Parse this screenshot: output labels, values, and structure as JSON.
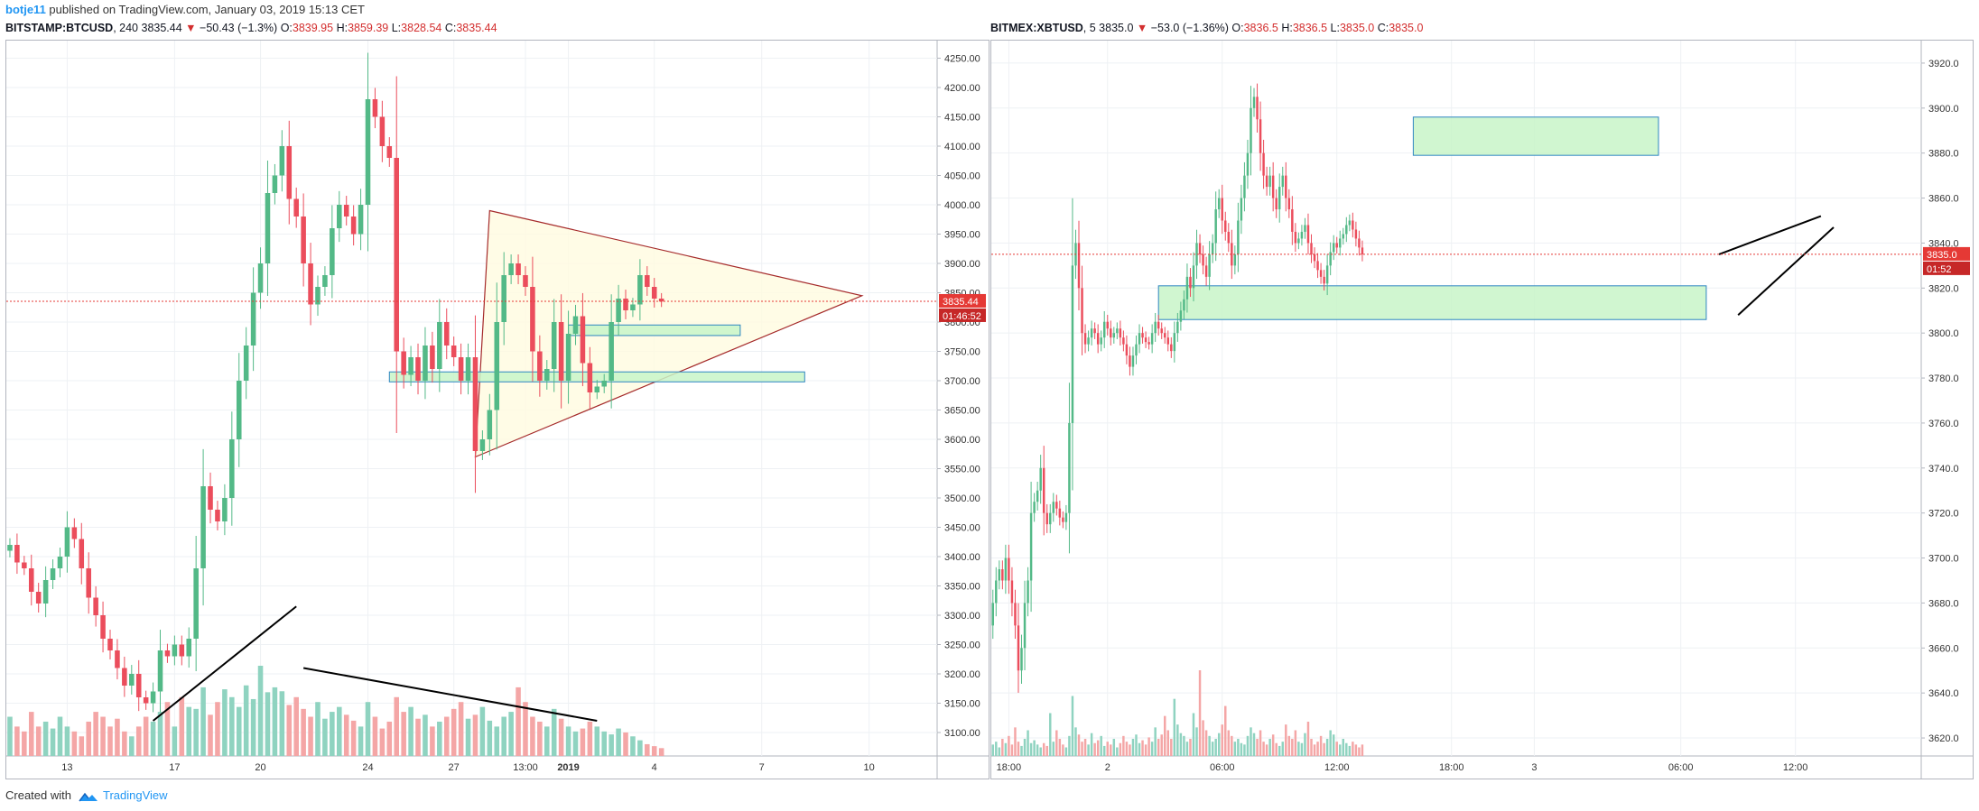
{
  "header": {
    "author": "botje11",
    "published_text": "published on TradingView.com, January 03, 2019 15:13 CET"
  },
  "footer": {
    "created_with": "Created with",
    "brand": "TradingView"
  },
  "colors": {
    "up": "#53b987",
    "down": "#eb4d5c",
    "vol_up": "#8fd3c0",
    "vol_down": "#f4a6a6",
    "grid": "#eef1f4",
    "zone_fill": "#c8f5c8",
    "zone_stroke": "#2e86c1",
    "triangle_stroke": "#a52a2a",
    "triangle_fill": "#fffbe0",
    "price_line": "#e53935"
  },
  "chart_data": [
    {
      "type": "candlestick",
      "symbol": "BITSTAMP:BTCUSD",
      "interval": "240",
      "last": "3835.44",
      "change": "−50.43 (−1.3%)",
      "ohlc": {
        "O": "3839.95",
        "H": "3859.39",
        "L": "3828.54",
        "C": "3835.44"
      },
      "price_label": "3835.44",
      "countdown": "01:46:52",
      "ylim": [
        3060,
        4280
      ],
      "y_ticks": [
        "4250.00",
        "4200.00",
        "4150.00",
        "4100.00",
        "4050.00",
        "4000.00",
        "3950.00",
        "3900.00",
        "3850.00",
        "3800.00",
        "3750.00",
        "3700.00",
        "3650.00",
        "3600.00",
        "3550.00",
        "3500.00",
        "3450.00",
        "3400.00",
        "3350.00",
        "3300.00",
        "3250.00",
        "3200.00",
        "3150.00",
        "3100.00"
      ],
      "y_tick_values": [
        4250,
        4200,
        4150,
        4100,
        4050,
        4000,
        3950,
        3900,
        3850,
        3800,
        3750,
        3700,
        3650,
        3600,
        3550,
        3500,
        3450,
        3400,
        3350,
        3300,
        3250,
        3200,
        3150,
        3100
      ],
      "x_ticks": [
        "13",
        "17",
        "20",
        "24",
        "27",
        "13:00",
        "2019",
        "4",
        "7",
        "10"
      ],
      "x_tick_bars": [
        8,
        23,
        35,
        50,
        62,
        72,
        78,
        90,
        105,
        120
      ],
      "n_bars_span": 130,
      "closes": [
        3420,
        3390,
        3380,
        3340,
        3320,
        3360,
        3380,
        3400,
        3450,
        3430,
        3380,
        3330,
        3300,
        3260,
        3240,
        3210,
        3180,
        3200,
        3160,
        3150,
        3170,
        3240,
        3230,
        3250,
        3230,
        3260,
        3380,
        3520,
        3480,
        3460,
        3500,
        3600,
        3700,
        3760,
        3850,
        3900,
        4020,
        4050,
        4100,
        4010,
        3980,
        3900,
        3830,
        3860,
        3880,
        3960,
        4000,
        3980,
        3950,
        4000,
        4180,
        4150,
        4100,
        4080,
        3750,
        3710,
        3740,
        3700,
        3760,
        3720,
        3800,
        3760,
        3740,
        3700,
        3740,
        3580,
        3600,
        3650,
        3800,
        3880,
        3900,
        3880,
        3860,
        3750,
        3700,
        3720,
        3800,
        3700,
        3780,
        3810,
        3730,
        3680,
        3690,
        3700,
        3800,
        3840,
        3820,
        3830,
        3880,
        3860,
        3840,
        3835
      ],
      "volumes": [
        40,
        30,
        25,
        45,
        30,
        35,
        28,
        40,
        30,
        25,
        20,
        35,
        45,
        40,
        30,
        38,
        25,
        20,
        30,
        40,
        35,
        45,
        55,
        30,
        60,
        50,
        48,
        70,
        42,
        55,
        68,
        60,
        50,
        72,
        58,
        92,
        65,
        70,
        66,
        52,
        60,
        48,
        40,
        55,
        38,
        45,
        50,
        42,
        36,
        30,
        55,
        40,
        28,
        35,
        60,
        45,
        50,
        38,
        42,
        30,
        35,
        40,
        48,
        55,
        38,
        42,
        50,
        36,
        30,
        40,
        45,
        70,
        55,
        40,
        35,
        30,
        48,
        38,
        30,
        25,
        28,
        35,
        30,
        25,
        22,
        28,
        24,
        20,
        16,
        12,
        10,
        8
      ],
      "zones": [
        {
          "y_top": 3715,
          "y_bottom": 3698,
          "x_start_bar": 53,
          "x_end_bar": 111
        },
        {
          "y_top": 3795,
          "y_bottom": 3777,
          "x_start_bar": 78,
          "x_end_bar": 102
        }
      ],
      "triangle": {
        "apex_bar": 119,
        "apex_price": 3845,
        "top_bar": 67,
        "top_price": 3990,
        "bottom_bar": 65,
        "bottom_price": 3570
      },
      "trendlines": [
        {
          "from_bar": 20,
          "from_price": 3120,
          "to_bar": 40,
          "to_price": 3315
        },
        {
          "from_bar": 41,
          "from_price": 3210,
          "to_bar": 82,
          "to_price": 3120
        }
      ]
    },
    {
      "type": "candlestick",
      "symbol": "BITMEX:XBTUSD",
      "interval": "5",
      "last": "3835.0",
      "change": "−53.0 (−1.36%)",
      "ohlc": {
        "O": "3836.5",
        "H": "3836.5",
        "L": "3835.0",
        "C": "3835.0"
      },
      "price_label": "3835.0",
      "countdown": "01:52",
      "ylim": [
        3612,
        3930
      ],
      "y_ticks": [
        "3920.0",
        "3900.0",
        "3880.0",
        "3860.0",
        "3840.0",
        "3820.0",
        "3800.0",
        "3780.0",
        "3760.0",
        "3740.0",
        "3720.0",
        "3700.0",
        "3680.0",
        "3660.0",
        "3640.0",
        "3620.0"
      ],
      "y_tick_values": [
        3920,
        3900,
        3880,
        3860,
        3840,
        3820,
        3800,
        3780,
        3760,
        3740,
        3720,
        3700,
        3680,
        3660,
        3640,
        3620
      ],
      "x_ticks": [
        "18:00",
        "2",
        "06:00",
        "12:00",
        "18:00",
        "3",
        "06:00",
        "12:00"
      ],
      "x_tick_bars": [
        5,
        36,
        72,
        108,
        144,
        170,
        216,
        252
      ],
      "n_bars_span": 292,
      "closes": [
        3680,
        3690,
        3695,
        3690,
        3700,
        3690,
        3680,
        3670,
        3650,
        3660,
        3680,
        3690,
        3720,
        3725,
        3730,
        3740,
        3720,
        3715,
        3720,
        3725,
        3722,
        3718,
        3716,
        3720,
        3760,
        3830,
        3840,
        3820,
        3800,
        3795,
        3798,
        3802,
        3800,
        3795,
        3798,
        3805,
        3802,
        3798,
        3800,
        3802,
        3798,
        3795,
        3790,
        3785,
        3790,
        3795,
        3800,
        3798,
        3796,
        3795,
        3800,
        3805,
        3802,
        3800,
        3798,
        3795,
        3792,
        3800,
        3805,
        3810,
        3815,
        3825,
        3820,
        3830,
        3840,
        3835,
        3830,
        3825,
        3835,
        3840,
        3855,
        3860,
        3850,
        3845,
        3840,
        3830,
        3835,
        3850,
        3860,
        3870,
        3880,
        3900,
        3905,
        3895,
        3880,
        3870,
        3865,
        3870,
        3860,
        3855,
        3865,
        3870,
        3860,
        3855,
        3845,
        3840,
        3842,
        3845,
        3848,
        3840,
        3835,
        3832,
        3828,
        3825,
        3822,
        3830,
        3836,
        3840,
        3838,
        3842,
        3844,
        3848,
        3850,
        3846,
        3842,
        3838,
        3835
      ],
      "volumes": [
        8,
        10,
        6,
        12,
        9,
        14,
        8,
        20,
        10,
        7,
        12,
        18,
        9,
        11,
        8,
        6,
        9,
        7,
        30,
        10,
        18,
        12,
        8,
        6,
        14,
        42,
        20,
        15,
        10,
        12,
        8,
        16,
        9,
        11,
        14,
        7,
        10,
        8,
        12,
        6,
        9,
        14,
        10,
        8,
        12,
        15,
        9,
        11,
        8,
        13,
        10,
        20,
        12,
        15,
        28,
        18,
        12,
        40,
        22,
        16,
        14,
        10,
        12,
        30,
        20,
        60,
        25,
        18,
        14,
        10,
        12,
        16,
        22,
        35,
        18,
        14,
        10,
        12,
        9,
        8,
        14,
        20,
        16,
        12,
        18,
        10,
        8,
        12,
        15,
        9,
        7,
        10,
        22,
        14,
        12,
        18,
        10,
        9,
        16,
        24,
        12,
        8,
        10,
        14,
        9,
        12,
        18,
        15,
        10,
        8,
        12,
        9,
        7,
        10,
        8,
        6,
        8
      ],
      "zones": [
        {
          "y_top": 3896,
          "y_bottom": 3879,
          "x_start_bar": 132,
          "x_end_bar": 209
        },
        {
          "y_top": 3821,
          "y_bottom": 3806,
          "x_start_bar": 52,
          "x_end_bar": 224
        }
      ],
      "trendlines": [
        {
          "from_bar": 228,
          "from_price": 3835,
          "to_bar": 260,
          "to_price": 3852
        },
        {
          "from_bar": 234,
          "from_price": 3808,
          "to_bar": 264,
          "to_price": 3847
        }
      ]
    }
  ]
}
